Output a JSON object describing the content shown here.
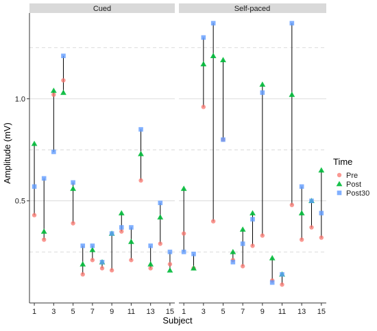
{
  "chart_data": {
    "type": "scatter",
    "facets": [
      "Cued",
      "Self-paced"
    ],
    "xlabel": "Subject",
    "ylabel": "Amplitude (mV)",
    "x_ticks": [
      1,
      3,
      5,
      7,
      9,
      11,
      13,
      15
    ],
    "y_ticks": [
      0.5,
      1.0
    ],
    "y_tick_labels": [
      "0.5",
      "1.0"
    ],
    "x_range": [
      0.5,
      15.5
    ],
    "y_range": [
      0.0,
      1.42
    ],
    "grid": true,
    "legend_position": "right",
    "legend_title": "Time",
    "series": [
      {
        "name": "Pre",
        "color": "#F8766D",
        "shape": "circle"
      },
      {
        "name": "Post",
        "color": "#00BA38",
        "shape": "triangle"
      },
      {
        "name": "Post30",
        "color": "#619CFF",
        "shape": "square"
      }
    ],
    "panels": [
      {
        "facet": "Cued",
        "subjects": [
          1,
          2,
          3,
          4,
          5,
          6,
          7,
          8,
          9,
          10,
          11,
          12,
          13,
          14,
          15
        ],
        "pre": [
          0.43,
          0.31,
          1.02,
          1.09,
          0.39,
          0.14,
          0.21,
          0.17,
          0.16,
          0.35,
          0.21,
          0.6,
          0.17,
          0.29,
          0.19
        ],
        "post": [
          0.78,
          0.35,
          1.04,
          1.03,
          0.56,
          0.19,
          0.26,
          0.2,
          0.34,
          0.44,
          0.3,
          0.73,
          0.19,
          0.42,
          0.16
        ],
        "post30": [
          0.57,
          0.61,
          0.74,
          1.21,
          0.59,
          0.28,
          0.28,
          0.2,
          0.34,
          0.37,
          0.37,
          0.85,
          0.28,
          0.49,
          0.25
        ]
      },
      {
        "facet": "Self-paced",
        "subjects": [
          1,
          2,
          3,
          4,
          5,
          6,
          7,
          8,
          9,
          10,
          11,
          12,
          13,
          14,
          15
        ],
        "pre": [
          0.34,
          0.17,
          0.96,
          0.4,
          0.8,
          0.21,
          0.18,
          0.28,
          0.33,
          0.11,
          0.09,
          0.48,
          0.31,
          0.37,
          0.32
        ],
        "post": [
          0.56,
          0.17,
          1.17,
          1.21,
          1.19,
          0.25,
          0.36,
          0.44,
          1.07,
          0.22,
          0.14,
          1.02,
          0.44,
          0.5,
          0.65
        ],
        "post30": [
          0.25,
          0.24,
          1.3,
          1.37,
          0.8,
          0.2,
          0.29,
          0.41,
          1.03,
          0.1,
          0.14,
          1.37,
          0.57,
          0.5,
          0.44
        ]
      }
    ]
  }
}
